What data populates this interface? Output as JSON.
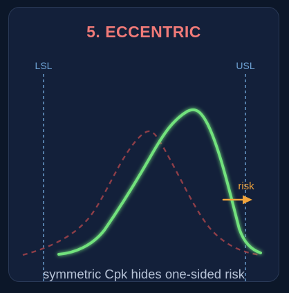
{
  "title": "5. ECCENTRIC",
  "caption": "symmetric Cpk hides one-sided risk",
  "limits": {
    "lower": "LSL",
    "upper": "USL"
  },
  "annotation": "risk",
  "colors": {
    "title": "#f07a78",
    "limit": "#6fa3d6",
    "actual": "#72e27d",
    "assumed": "#8e3e48",
    "risk": "#f2a43c",
    "caption": "#b6c2d6",
    "card": "#13203a",
    "border": "#2a3a57"
  }
}
